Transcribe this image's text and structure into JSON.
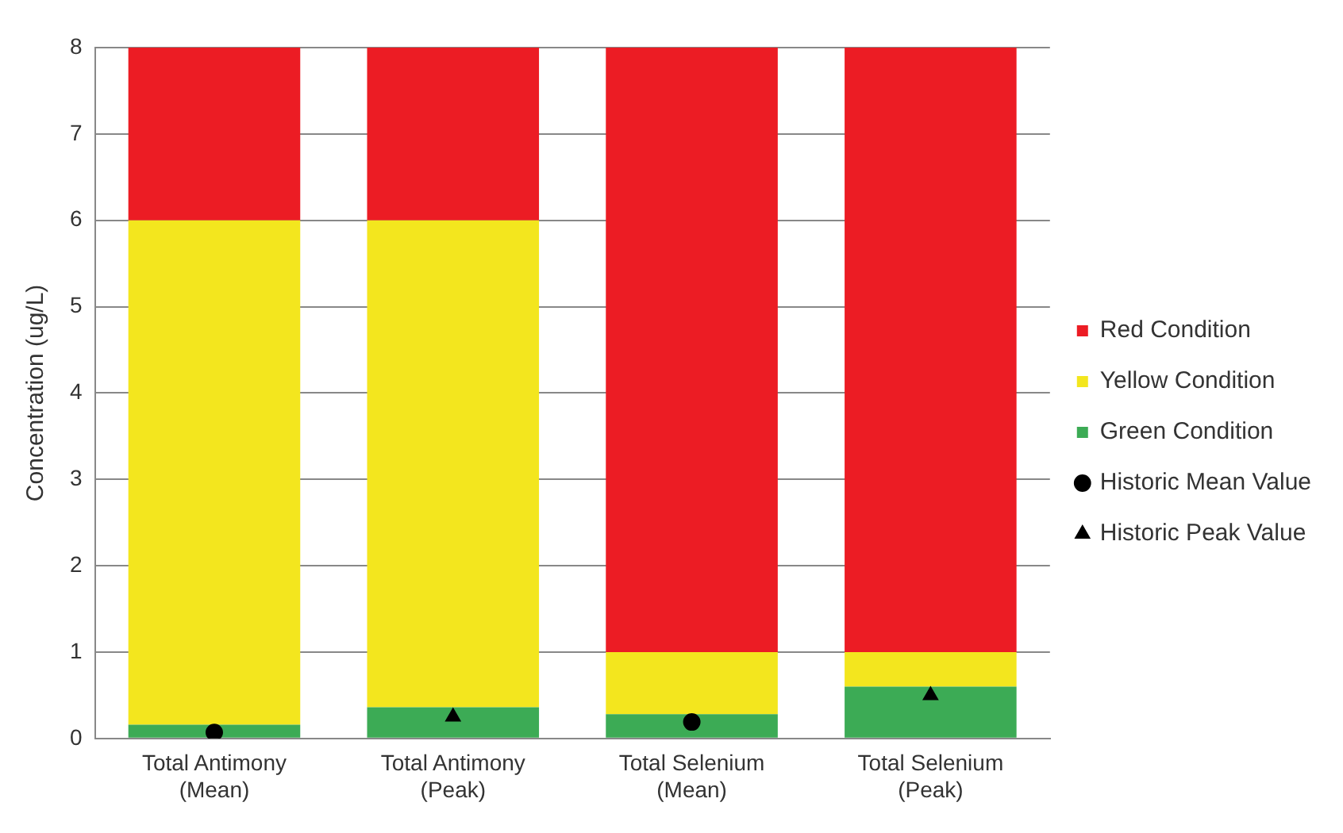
{
  "chart_data": {
    "type": "bar",
    "stacked": true,
    "ylabel": "Concentration (ug/L)",
    "categories": [
      "Total Antimony (Mean)",
      "Total Antimony (Peak)",
      "Total Selenium (Mean)",
      "Total Selenium (Peak)"
    ],
    "series": [
      {
        "name": "Green Condition",
        "color": "#3cab55",
        "values": [
          0.16,
          0.36,
          0.28,
          0.6
        ]
      },
      {
        "name": "Yellow Condition",
        "color": "#f3e61e",
        "values": [
          5.84,
          5.64,
          0.72,
          0.4
        ]
      },
      {
        "name": "Red Condition",
        "color": "#ec1c24",
        "values": [
          2,
          2,
          7,
          7
        ]
      },
      {
        "name": "Historic Mean Value",
        "type": "scatter",
        "marker": "circle",
        "color": "#000000",
        "values": [
          0.07,
          null,
          0.19,
          null
        ]
      },
      {
        "name": "Historic Peak Value",
        "type": "scatter",
        "marker": "triangle",
        "color": "#000000",
        "values": [
          null,
          0.25,
          null,
          0.5
        ]
      }
    ],
    "ylim": [
      0,
      8
    ],
    "yticks": [
      0,
      1,
      2,
      3,
      4,
      5,
      6,
      7,
      8
    ],
    "grid": "y",
    "legend": "right"
  }
}
